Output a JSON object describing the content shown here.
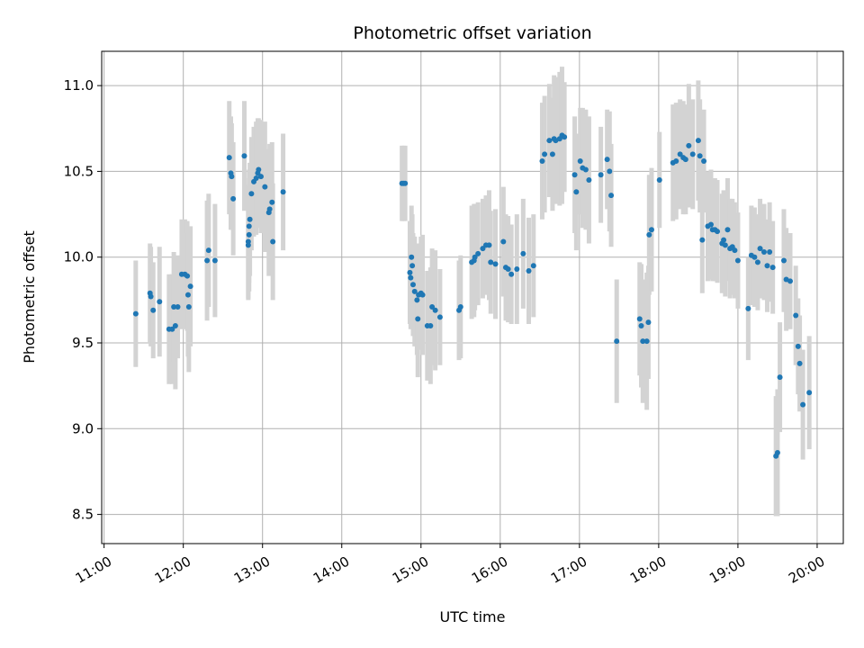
{
  "chart_data": {
    "type": "scatter",
    "title": "Photometric offset variation",
    "xlabel": "UTC time",
    "ylabel": "Photometric offset",
    "x_unit": "hour (UTC)",
    "xlim": [
      10.97,
      20.33
    ],
    "ylim": [
      8.33,
      11.2
    ],
    "x_ticks": [
      11,
      12,
      13,
      14,
      15,
      16,
      17,
      18,
      19,
      20
    ],
    "x_tick_labels": [
      "11:00",
      "12:00",
      "13:00",
      "14:00",
      "15:00",
      "16:00",
      "17:00",
      "18:00",
      "19:00",
      "20:00"
    ],
    "y_ticks": [
      8.5,
      9.0,
      9.5,
      10.0,
      10.5,
      11.0
    ],
    "y_tick_labels": [
      "8.5",
      "9.0",
      "9.5",
      "10.0",
      "10.5",
      "11.0"
    ],
    "grid": true,
    "colors": {
      "marker": "#1f77b4",
      "errorbar": "#d3d3d3",
      "grid": "#b0b0b0"
    },
    "series": [
      {
        "points": [
          [
            11.4,
            9.67,
            0.31
          ],
          [
            11.58,
            9.79,
            0.29
          ],
          [
            11.59,
            9.77,
            0.29
          ],
          [
            11.62,
            9.69,
            0.28
          ],
          [
            11.7,
            9.74,
            0.32
          ],
          [
            11.82,
            9.58,
            0.32
          ],
          [
            11.86,
            9.58,
            0.32
          ],
          [
            11.9,
            9.6,
            0.37
          ],
          [
            11.88,
            9.71,
            0.32
          ],
          [
            11.93,
            9.71,
            0.3
          ],
          [
            11.98,
            9.9,
            0.32
          ],
          [
            12.02,
            9.9,
            0.32
          ],
          [
            12.05,
            9.89,
            0.32
          ],
          [
            12.06,
            9.78,
            0.36
          ],
          [
            12.07,
            9.71,
            0.38
          ],
          [
            12.09,
            9.83,
            0.35
          ],
          [
            12.3,
            9.98,
            0.35
          ],
          [
            12.32,
            10.04,
            0.33
          ],
          [
            12.4,
            9.98,
            0.33
          ],
          [
            12.58,
            10.58,
            0.33
          ],
          [
            12.6,
            10.49,
            0.33
          ],
          [
            12.61,
            10.47,
            0.31
          ],
          [
            12.63,
            10.34,
            0.33
          ],
          [
            12.77,
            10.59,
            0.32
          ],
          [
            12.82,
            10.07,
            0.32
          ],
          [
            12.82,
            10.09,
            0.33
          ],
          [
            12.83,
            10.13,
            0.33
          ],
          [
            12.83,
            10.18,
            0.33
          ],
          [
            12.84,
            10.22,
            0.33
          ],
          [
            12.86,
            10.37,
            0.33
          ],
          [
            12.89,
            10.44,
            0.32
          ],
          [
            12.92,
            10.46,
            0.33
          ],
          [
            12.94,
            10.49,
            0.32
          ],
          [
            12.95,
            10.51,
            0.3
          ],
          [
            12.98,
            10.47,
            0.33
          ],
          [
            13.03,
            10.41,
            0.38
          ],
          [
            13.08,
            10.26,
            0.37
          ],
          [
            13.09,
            10.28,
            0.38
          ],
          [
            13.12,
            10.32,
            0.35
          ],
          [
            13.13,
            10.09,
            0.34
          ],
          [
            13.26,
            10.38,
            0.34
          ],
          [
            14.76,
            10.43,
            0.22
          ],
          [
            14.78,
            10.43,
            0.22
          ],
          [
            14.8,
            10.43,
            0.22
          ],
          [
            14.86,
            9.91,
            0.3
          ],
          [
            14.87,
            9.88,
            0.3
          ],
          [
            14.88,
            10.0,
            0.3
          ],
          [
            14.89,
            9.95,
            0.3
          ],
          [
            14.9,
            9.84,
            0.3
          ],
          [
            14.92,
            9.8,
            0.32
          ],
          [
            14.95,
            9.75,
            0.32
          ],
          [
            14.96,
            9.64,
            0.34
          ],
          [
            14.97,
            9.78,
            0.3
          ],
          [
            15.0,
            9.79,
            0.33
          ],
          [
            15.02,
            9.78,
            0.35
          ],
          [
            15.08,
            9.6,
            0.32
          ],
          [
            15.12,
            9.6,
            0.34
          ],
          [
            15.14,
            9.71,
            0.34
          ],
          [
            15.18,
            9.69,
            0.35
          ],
          [
            15.24,
            9.65,
            0.28
          ],
          [
            15.48,
            9.69,
            0.29
          ],
          [
            15.5,
            9.71,
            0.3
          ],
          [
            15.64,
            9.97,
            0.33
          ],
          [
            15.67,
            9.98,
            0.33
          ],
          [
            15.68,
            10.0,
            0.31
          ],
          [
            15.72,
            10.02,
            0.3
          ],
          [
            15.78,
            10.05,
            0.29
          ],
          [
            15.82,
            10.07,
            0.29
          ],
          [
            15.86,
            10.07,
            0.32
          ],
          [
            15.88,
            9.97,
            0.3
          ],
          [
            15.94,
            9.96,
            0.32
          ],
          [
            16.04,
            10.09,
            0.32
          ],
          [
            16.07,
            9.94,
            0.31
          ],
          [
            16.1,
            9.93,
            0.31
          ],
          [
            16.14,
            9.9,
            0.29
          ],
          [
            16.21,
            9.93,
            0.32
          ],
          [
            16.29,
            10.02,
            0.32
          ],
          [
            16.36,
            9.92,
            0.31
          ],
          [
            16.42,
            9.95,
            0.3
          ],
          [
            16.53,
            10.56,
            0.34
          ],
          [
            16.56,
            10.6,
            0.34
          ],
          [
            16.62,
            10.68,
            0.33
          ],
          [
            16.66,
            10.6,
            0.33
          ],
          [
            16.68,
            10.69,
            0.37
          ],
          [
            16.7,
            10.68,
            0.37
          ],
          [
            16.75,
            10.69,
            0.39
          ],
          [
            16.78,
            10.71,
            0.4
          ],
          [
            16.81,
            10.7,
            0.32
          ],
          [
            16.94,
            10.48,
            0.34
          ],
          [
            16.96,
            10.38,
            0.34
          ],
          [
            17.01,
            10.56,
            0.31
          ],
          [
            17.04,
            10.52,
            0.35
          ],
          [
            17.08,
            10.51,
            0.35
          ],
          [
            17.12,
            10.45,
            0.37
          ],
          [
            17.27,
            10.48,
            0.28
          ],
          [
            17.35,
            10.57,
            0.29
          ],
          [
            17.38,
            10.5,
            0.35
          ],
          [
            17.4,
            10.36,
            0.3
          ],
          [
            17.47,
            9.51,
            0.36
          ],
          [
            17.76,
            9.64,
            0.33
          ],
          [
            17.78,
            9.6,
            0.36
          ],
          [
            17.8,
            9.51,
            0.36
          ],
          [
            17.85,
            9.51,
            0.4
          ],
          [
            17.87,
            9.62,
            0.33
          ],
          [
            17.88,
            10.13,
            0.35
          ],
          [
            17.91,
            10.16,
            0.36
          ],
          [
            18.01,
            10.45,
            0.28
          ],
          [
            18.18,
            10.55,
            0.34
          ],
          [
            18.22,
            10.56,
            0.34
          ],
          [
            18.27,
            10.6,
            0.32
          ],
          [
            18.31,
            10.58,
            0.33
          ],
          [
            18.34,
            10.57,
            0.32
          ],
          [
            18.38,
            10.65,
            0.36
          ],
          [
            18.43,
            10.6,
            0.32
          ],
          [
            18.5,
            10.68,
            0.35
          ],
          [
            18.52,
            10.59,
            0.33
          ],
          [
            18.55,
            10.1,
            0.31
          ],
          [
            18.57,
            10.56,
            0.3
          ],
          [
            18.62,
            10.18,
            0.32
          ],
          [
            18.66,
            10.19,
            0.32
          ],
          [
            18.68,
            10.16,
            0.3
          ],
          [
            18.71,
            10.16,
            0.3
          ],
          [
            18.74,
            10.15,
            0.3
          ],
          [
            18.8,
            10.08,
            0.29
          ],
          [
            18.82,
            10.1,
            0.29
          ],
          [
            18.84,
            10.07,
            0.3
          ],
          [
            18.87,
            10.16,
            0.3
          ],
          [
            18.9,
            10.05,
            0.29
          ],
          [
            18.93,
            10.06,
            0.28
          ],
          [
            18.96,
            10.04,
            0.28
          ],
          [
            19.0,
            9.98,
            0.28
          ],
          [
            19.13,
            9.7,
            0.3
          ],
          [
            19.17,
            10.01,
            0.29
          ],
          [
            19.21,
            10.0,
            0.29
          ],
          [
            19.25,
            9.97,
            0.28
          ],
          [
            19.28,
            10.05,
            0.29
          ],
          [
            19.33,
            10.03,
            0.28
          ],
          [
            19.37,
            9.95,
            0.27
          ],
          [
            19.4,
            10.03,
            0.29
          ],
          [
            19.44,
            9.94,
            0.27
          ],
          [
            19.48,
            8.84,
            0.35
          ],
          [
            19.5,
            8.86,
            0.37
          ],
          [
            19.53,
            9.3,
            0.32
          ],
          [
            19.58,
            9.98,
            0.3
          ],
          [
            19.61,
            9.87,
            0.3
          ],
          [
            19.66,
            9.86,
            0.28
          ],
          [
            19.73,
            9.66,
            0.29
          ],
          [
            19.76,
            9.48,
            0.28
          ],
          [
            19.78,
            9.38,
            0.28
          ],
          [
            19.82,
            9.14,
            0.32
          ],
          [
            19.9,
            9.21,
            0.33
          ]
        ]
      }
    ]
  }
}
